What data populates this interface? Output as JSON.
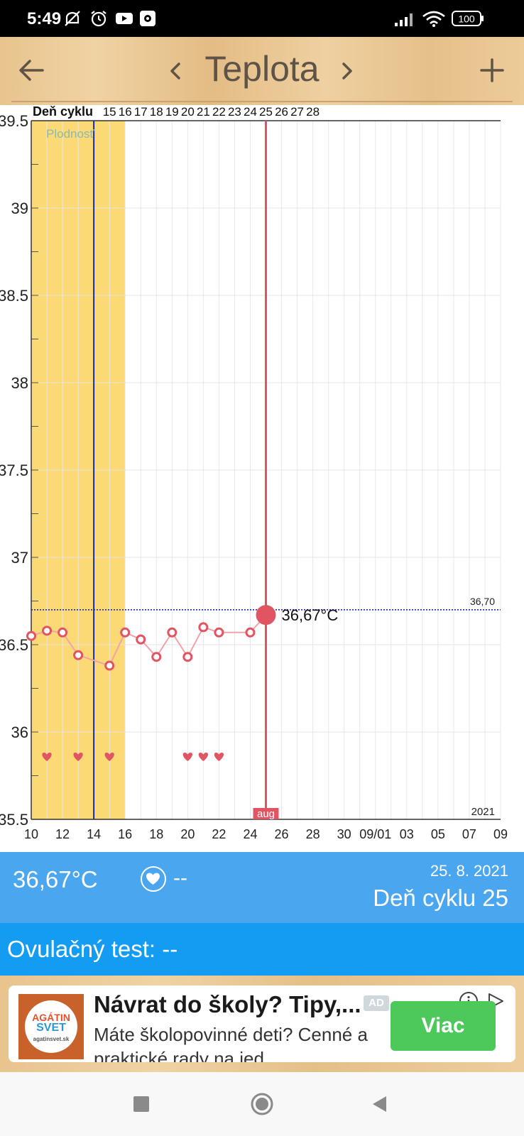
{
  "status_bar": {
    "time": "5:49",
    "battery": "100"
  },
  "header": {
    "title": "Teplota"
  },
  "chart_data": {
    "type": "line",
    "title": "",
    "xlabel": "",
    "ylabel": "",
    "top_axis_label": "Deň cyklu",
    "cycle_days": [
      "15",
      "16",
      "17",
      "18",
      "19",
      "20",
      "21",
      "22",
      "23",
      "24",
      "25",
      "26",
      "27",
      "28"
    ],
    "x_tick_labels": [
      "10",
      "12",
      "14",
      "16",
      "18",
      "20",
      "22",
      "24",
      "26",
      "28",
      "30",
      "09/01",
      "03",
      "05",
      "07",
      "09"
    ],
    "y_tick_labels": [
      "39.5",
      "39",
      "38.5",
      "38",
      "37.5",
      "37",
      "36.5",
      "36",
      "35.5"
    ],
    "ylim": [
      35.5,
      39.5
    ],
    "y_tick_step": 0.5,
    "fertility_label": "Plodnosť",
    "fertility_window": [
      10,
      16
    ],
    "ovulation_line_x": 14,
    "current_day_x": 25,
    "month_label": "aug",
    "year_label": "2021",
    "coverline_value": 36.7,
    "coverline_label": "36,70",
    "current_value_label": "36,67°C",
    "series": [
      {
        "x": [
          10,
          11,
          12,
          13,
          15,
          16,
          17,
          18,
          19,
          20,
          21,
          22,
          24,
          25
        ],
        "values": [
          36.55,
          36.58,
          36.57,
          36.44,
          36.38,
          36.57,
          36.53,
          36.43,
          36.57,
          36.43,
          36.6,
          36.57,
          36.57,
          36.67
        ]
      }
    ],
    "intercourse_days": [
      11,
      13,
      15,
      20,
      21,
      22
    ],
    "grid": true
  },
  "info": {
    "temperature": "36,67°C",
    "intercourse": "--",
    "date": "25. 8. 2021",
    "cycle_day": "Deň cyklu 25"
  },
  "ovulation": {
    "label": "Ovulačný test: --"
  },
  "ad": {
    "title": "Návrat do školy? Tipy,...",
    "badge": "AD",
    "body": "Máte školopovinné deti? Cenné a praktické rady na jed...",
    "cta": "Viac"
  },
  "colors": {
    "accent": "#e05561",
    "fertility": "#fbd974",
    "info_panel": "#4aa7ef",
    "ovulation_bar": "#149cf3",
    "ovulation_line": "#1a2aa8"
  }
}
